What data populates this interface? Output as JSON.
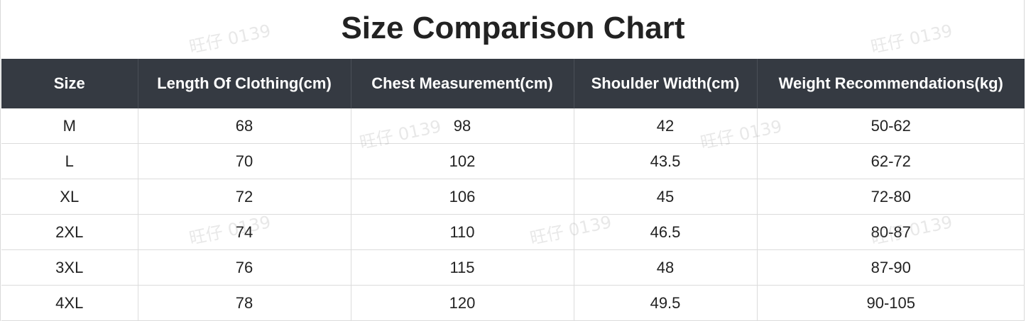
{
  "title": "Size Comparison Chart",
  "headers": [
    "Size",
    "Length Of Clothing(cm)",
    "Chest Measurement(cm)",
    "Shoulder Width(cm)",
    "Weight Recommendations(kg)"
  ],
  "rows": [
    [
      "M",
      "68",
      "98",
      "42",
      "50-62"
    ],
    [
      "L",
      "70",
      "102",
      "43.5",
      "62-72"
    ],
    [
      "XL",
      "72",
      "106",
      "45",
      "72-80"
    ],
    [
      "2XL",
      "74",
      "110",
      "46.5",
      "80-87"
    ],
    [
      "3XL",
      "76",
      "115",
      "48",
      "87-90"
    ],
    [
      "4XL",
      "78",
      "120",
      "49.5",
      "90-105"
    ]
  ],
  "watermark": "旺仔 0139",
  "colors": {
    "header_bg": "#353a42",
    "header_text": "#ffffff",
    "grid_line": "#dcdcdc"
  }
}
